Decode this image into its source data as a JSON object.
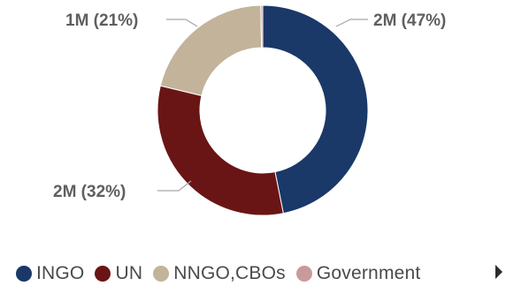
{
  "chart_data": {
    "type": "pie",
    "variant": "donut",
    "categories": [
      "INGO",
      "UN",
      "NNGO,CBOs",
      "Government"
    ],
    "values": [
      2,
      2,
      1,
      0
    ],
    "percentages": [
      47,
      32,
      21,
      0.3
    ],
    "data_labels": [
      "2M (47%)",
      "2M (32%)",
      "1M (21%)",
      ""
    ],
    "colors": [
      "#1a3868",
      "#6a1515",
      "#c2b39a",
      "#c99a9a"
    ],
    "legend_position": "bottom",
    "start_angle_deg": 0,
    "direction": "clockwise"
  },
  "legend": {
    "items": [
      {
        "label": "INGO",
        "color": "#1a3868"
      },
      {
        "label": "UN",
        "color": "#6a1515"
      },
      {
        "label": "NNGO,CBOs",
        "color": "#c2b39a"
      },
      {
        "label": "Government",
        "color": "#c99a9a"
      }
    ],
    "next_icon": "triangle-right-icon"
  }
}
